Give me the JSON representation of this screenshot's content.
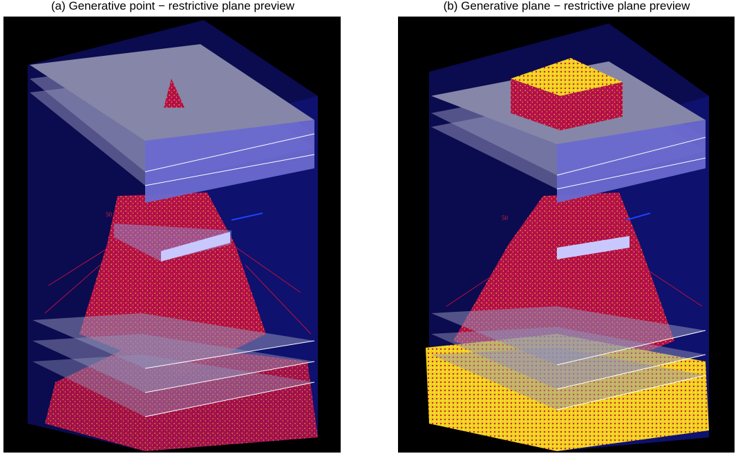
{
  "panels": [
    {
      "caption": "(a) Generative point − restrictive plane preview",
      "axis_label": "50"
    },
    {
      "caption": "(b) Generative plane − restrictive plane preview",
      "axis_label": "50"
    }
  ]
}
